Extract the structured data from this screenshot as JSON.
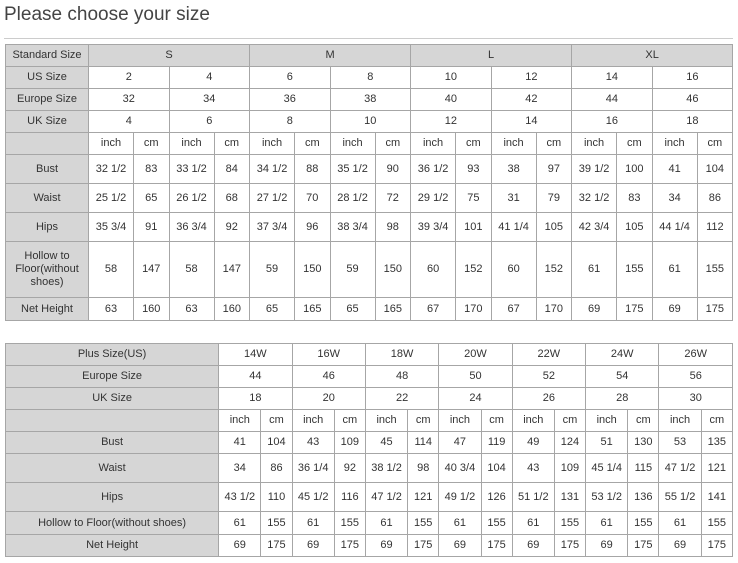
{
  "title": "Please choose your size",
  "table1": {
    "header": {
      "label": "Standard Size",
      "groups": [
        "S",
        "M",
        "L",
        "XL"
      ]
    },
    "size_rows": [
      {
        "label": "US Size",
        "values": [
          "2",
          "4",
          "6",
          "8",
          "10",
          "12",
          "14",
          "16"
        ]
      },
      {
        "label": "Europe Size",
        "values": [
          "32",
          "34",
          "36",
          "38",
          "40",
          "42",
          "44",
          "46"
        ]
      },
      {
        "label": "UK Size",
        "values": [
          "4",
          "6",
          "8",
          "10",
          "12",
          "14",
          "16",
          "18"
        ]
      }
    ],
    "units": [
      "inch",
      "cm"
    ],
    "measure_rows": [
      {
        "label": "Bust",
        "values": [
          "32 1/2",
          "83",
          "33 1/2",
          "84",
          "34 1/2",
          "88",
          "35 1/2",
          "90",
          "36 1/2",
          "93",
          "38",
          "97",
          "39 1/2",
          "100",
          "41",
          "104"
        ]
      },
      {
        "label": "Waist",
        "values": [
          "25 1/2",
          "65",
          "26 1/2",
          "68",
          "27 1/2",
          "70",
          "28 1/2",
          "72",
          "29 1/2",
          "75",
          "31",
          "79",
          "32 1/2",
          "83",
          "34",
          "86"
        ]
      },
      {
        "label": "Hips",
        "values": [
          "35 3/4",
          "91",
          "36 3/4",
          "92",
          "37 3/4",
          "96",
          "38 3/4",
          "98",
          "39 3/4",
          "101",
          "41 1/4",
          "105",
          "42 3/4",
          "105",
          "44 1/4",
          "112"
        ]
      },
      {
        "label": "Hollow to Floor(without shoes)",
        "values": [
          "58",
          "147",
          "58",
          "147",
          "59",
          "150",
          "59",
          "150",
          "60",
          "152",
          "60",
          "152",
          "61",
          "155",
          "61",
          "155"
        ]
      },
      {
        "label": "Net Height",
        "values": [
          "63",
          "160",
          "63",
          "160",
          "65",
          "165",
          "65",
          "165",
          "67",
          "170",
          "67",
          "170",
          "69",
          "175",
          "69",
          "175"
        ]
      }
    ]
  },
  "table2": {
    "size_rows": [
      {
        "label": "Plus Size(US)",
        "values": [
          "14W",
          "16W",
          "18W",
          "20W",
          "22W",
          "24W",
          "26W"
        ]
      },
      {
        "label": "Europe Size",
        "values": [
          "44",
          "46",
          "48",
          "50",
          "52",
          "54",
          "56"
        ]
      },
      {
        "label": "UK Size",
        "values": [
          "18",
          "20",
          "22",
          "24",
          "26",
          "28",
          "30"
        ]
      }
    ],
    "units": [
      "inch",
      "cm"
    ],
    "measure_rows": [
      {
        "label": "Bust",
        "values": [
          "41",
          "104",
          "43",
          "109",
          "45",
          "114",
          "47",
          "119",
          "49",
          "124",
          "51",
          "130",
          "53",
          "135"
        ]
      },
      {
        "label": "Waist",
        "values": [
          "34",
          "86",
          "36 1/4",
          "92",
          "38 1/2",
          "98",
          "40 3/4",
          "104",
          "43",
          "109",
          "45 1/4",
          "115",
          "47 1/2",
          "121"
        ]
      },
      {
        "label": "Hips",
        "values": [
          "43 1/2",
          "110",
          "45 1/2",
          "116",
          "47 1/2",
          "121",
          "49 1/2",
          "126",
          "51 1/2",
          "131",
          "53 1/2",
          "136",
          "55 1/2",
          "141"
        ]
      },
      {
        "label": "Hollow to Floor(without shoes)",
        "values": [
          "61",
          "155",
          "61",
          "155",
          "61",
          "155",
          "61",
          "155",
          "61",
          "155",
          "61",
          "155",
          "61",
          "155"
        ]
      },
      {
        "label": "Net Height",
        "values": [
          "69",
          "175",
          "69",
          "175",
          "69",
          "175",
          "69",
          "175",
          "69",
          "175",
          "69",
          "175",
          "69",
          "175"
        ]
      }
    ]
  }
}
